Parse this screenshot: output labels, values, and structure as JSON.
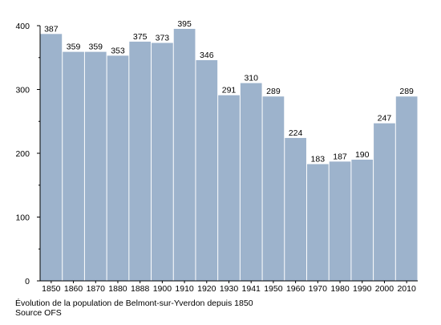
{
  "chart_data": {
    "type": "bar",
    "categories": [
      "1850",
      "1860",
      "1870",
      "1880",
      "1888",
      "1900",
      "1910",
      "1920",
      "1930",
      "1941",
      "1950",
      "1960",
      "1970",
      "1980",
      "1990",
      "2000",
      "2010"
    ],
    "values": [
      387,
      359,
      359,
      353,
      375,
      373,
      395,
      346,
      291,
      310,
      289,
      224,
      183,
      187,
      190,
      247,
      289
    ],
    "y_ticks": [
      0,
      100,
      200,
      300,
      400
    ],
    "ylim": [
      0,
      400
    ],
    "grid": false,
    "bar_color": "#9db3cc",
    "caption": {
      "line1": "Évolution de la population de Belmont-sur-Yverdon depuis 1850",
      "line2": "Source OFS"
    }
  }
}
